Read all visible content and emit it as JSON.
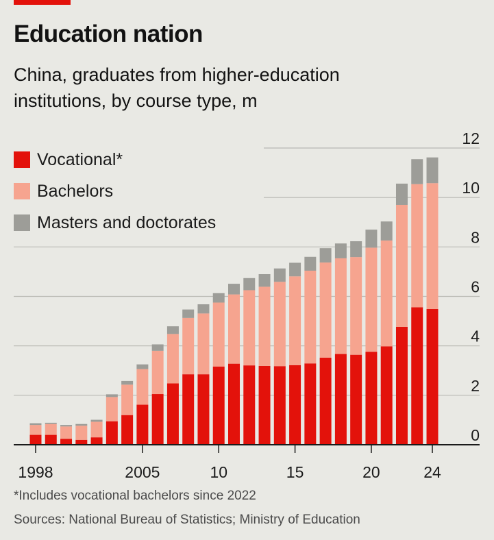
{
  "header": {
    "title": "Education nation",
    "subtitle": "China, graduates from higher-education institutions, by course type, m"
  },
  "colors": {
    "vocational": "#e3120b",
    "bachelors": "#f6a48f",
    "masters": "#9d9d98",
    "accent": "#e3120b",
    "background": "#e9e9e4"
  },
  "legend": [
    {
      "label": "Vocational*",
      "color": "#e3120b"
    },
    {
      "label": "Bachelors",
      "color": "#f6a48f"
    },
    {
      "label": "Masters and doctorates",
      "color": "#9d9d98"
    }
  ],
  "chart_data": {
    "type": "bar",
    "stacked": true,
    "x": [
      1998,
      1999,
      2000,
      2001,
      2002,
      2003,
      2004,
      2005,
      2006,
      2007,
      2008,
      2009,
      2010,
      2011,
      2012,
      2013,
      2014,
      2015,
      2016,
      2017,
      2018,
      2019,
      2020,
      2021,
      2022,
      2023,
      2024
    ],
    "x_tick_labels": [
      {
        "x": 1998,
        "label": "1998"
      },
      {
        "x": 2005,
        "label": "2005"
      },
      {
        "x": 2010,
        "label": "10"
      },
      {
        "x": 2015,
        "label": "15"
      },
      {
        "x": 2020,
        "label": "20"
      },
      {
        "x": 2024,
        "label": "24"
      }
    ],
    "series": [
      {
        "name": "Vocational*",
        "values": [
          0.4,
          0.4,
          0.24,
          0.2,
          0.3,
          0.95,
          1.2,
          1.62,
          2.05,
          2.48,
          2.85,
          2.85,
          3.16,
          3.28,
          3.21,
          3.19,
          3.18,
          3.22,
          3.29,
          3.52,
          3.67,
          3.64,
          3.76,
          3.98,
          4.77,
          5.56,
          5.49
        ]
      },
      {
        "name": "Bachelors",
        "values": [
          0.4,
          0.44,
          0.5,
          0.57,
          0.63,
          0.98,
          1.23,
          1.44,
          1.75,
          2.0,
          2.28,
          2.46,
          2.59,
          2.8,
          3.04,
          3.2,
          3.41,
          3.59,
          3.75,
          3.85,
          3.87,
          3.95,
          4.21,
          4.28,
          4.93,
          4.98,
          5.09
        ]
      },
      {
        "name": "Masters and doctorates",
        "values": [
          0.07,
          0.05,
          0.06,
          0.07,
          0.08,
          0.11,
          0.15,
          0.19,
          0.26,
          0.31,
          0.34,
          0.37,
          0.38,
          0.43,
          0.49,
          0.51,
          0.54,
          0.55,
          0.56,
          0.58,
          0.6,
          0.64,
          0.73,
          0.77,
          0.86,
          1.01,
          1.04
        ]
      }
    ],
    "ylim": [
      0,
      12
    ],
    "y_ticks": [
      0,
      2,
      4,
      6,
      8,
      10,
      12
    ],
    "y_axis_side": "right",
    "grid": true,
    "legend_position": "top-left"
  },
  "footer": {
    "footnote": "*Includes vocational bachelors since 2022",
    "sources": "Sources: National Bureau of Statistics; Ministry of Education"
  }
}
